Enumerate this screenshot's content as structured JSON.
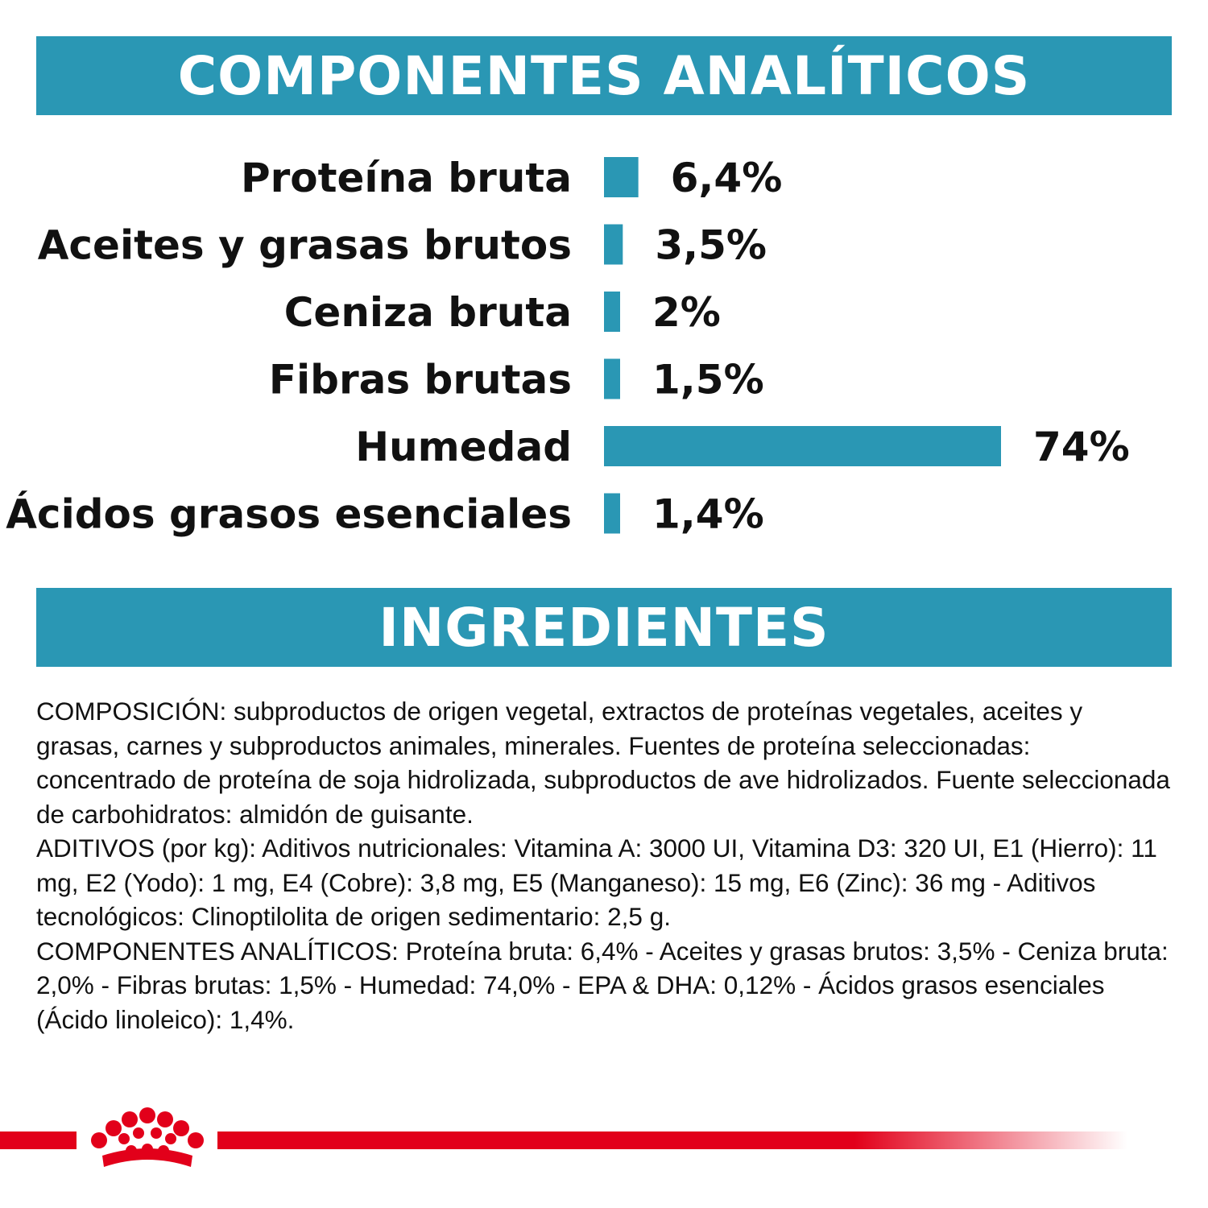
{
  "colors": {
    "accent": "#2a97b4",
    "brand_red": "#e2001a"
  },
  "header": {
    "title": "COMPONENTES ANALÍTICOS"
  },
  "chart_data": {
    "type": "bar",
    "orientation": "horizontal",
    "categories": [
      "Proteína bruta",
      "Aceites y grasas brutos",
      "Ceniza bruta",
      "Fibras brutas",
      "Humedad",
      "Ácidos grasos esenciales"
    ],
    "values": [
      6.4,
      3.5,
      2,
      1.5,
      74,
      1.4
    ],
    "value_labels": [
      "6,4%",
      "3,5%",
      "2%",
      "1,5%",
      "74%",
      "1,4%"
    ],
    "unit": "%",
    "grid": false,
    "legend": "none"
  },
  "ingredients": {
    "title": "INGREDIENTES",
    "paragraphs": [
      "COMPOSICIÓN: subproductos de origen vegetal, extractos de proteínas vegetales, aceites y grasas, carnes y subproductos animales, minerales. Fuentes de proteína seleccionadas: concentrado de proteína de soja hidrolizada, subproductos de ave hidrolizados. Fuente seleccionada de carbohidratos: almidón de guisante.",
      " ADITIVOS (por kg): Aditivos nutricionales: Vitamina A: 3000 UI, Vitamina D3: 320 UI, E1 (Hierro): 11 mg, E2 (Yodo): 1 mg, E4 (Cobre): 3,8 mg, E5 (Manganeso): 15 mg, E6 (Zinc): 36 mg - Aditivos tecnológicos: Clinoptilolita de origen sedimentario: 2,5 g.",
      " COMPONENTES ANALÍTICOS: Proteína bruta: 6,4% - Aceites y grasas brutos: 3,5% - Ceniza bruta: 2,0% - Fibras brutas: 1,5% - Humedad: 74,0% - EPA & DHA: 0,12% - Ácidos grasos esenciales (Ácido linoleico): 1,4%."
    ]
  },
  "footer": {
    "logo": "crown-logo"
  }
}
